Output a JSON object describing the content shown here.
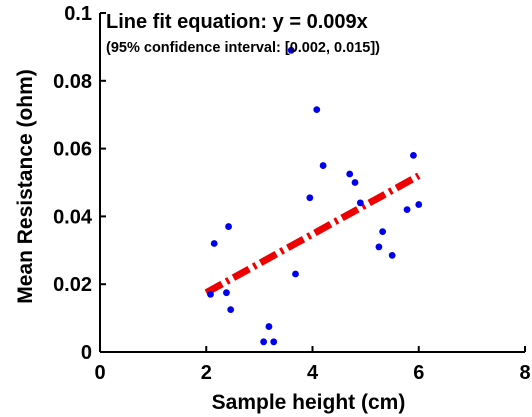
{
  "chart_data": {
    "type": "scatter",
    "xlabel": "Sample height (cm)",
    "ylabel": "Mean Resistance (ohm)",
    "xlim": [
      0,
      8
    ],
    "ylim": [
      0,
      0.1
    ],
    "x_ticks": [
      "0",
      "2",
      "4",
      "6",
      "8"
    ],
    "y_ticks": [
      "0",
      "0.02",
      "0.04",
      "0.06",
      "0.08",
      "0.1"
    ],
    "grid": false,
    "annotations": {
      "equation": "Line fit equation: y = 0.009x",
      "confidence": "(95% confidence interval: [0.002, 0.015])"
    },
    "series": [
      {
        "kind": "points",
        "color": "#0000ee",
        "points": [
          {
            "x": 2.08,
            "y": 0.017
          },
          {
            "x": 2.15,
            "y": 0.032
          },
          {
            "x": 2.38,
            "y": 0.0175
          },
          {
            "x": 2.42,
            "y": 0.037
          },
          {
            "x": 2.46,
            "y": 0.0125
          },
          {
            "x": 3.08,
            "y": 0.003
          },
          {
            "x": 3.18,
            "y": 0.0075
          },
          {
            "x": 3.27,
            "y": 0.003
          },
          {
            "x": 3.6,
            "y": 0.089
          },
          {
            "x": 3.68,
            "y": 0.023
          },
          {
            "x": 3.95,
            "y": 0.0455
          },
          {
            "x": 4.08,
            "y": 0.0715
          },
          {
            "x": 4.2,
            "y": 0.055
          },
          {
            "x": 4.7,
            "y": 0.0525
          },
          {
            "x": 4.8,
            "y": 0.05
          },
          {
            "x": 4.9,
            "y": 0.044
          },
          {
            "x": 5.25,
            "y": 0.031
          },
          {
            "x": 5.32,
            "y": 0.0355
          },
          {
            "x": 5.5,
            "y": 0.0285
          },
          {
            "x": 5.78,
            "y": 0.042
          },
          {
            "x": 5.9,
            "y": 0.058
          },
          {
            "x": 6.0,
            "y": 0.0435
          }
        ]
      },
      {
        "kind": "fit-line",
        "color": "#ee0000",
        "dash": "dash-dot",
        "points": [
          {
            "x": 2.0,
            "y": 0.0175
          },
          {
            "x": 6.0,
            "y": 0.052
          }
        ]
      }
    ]
  }
}
